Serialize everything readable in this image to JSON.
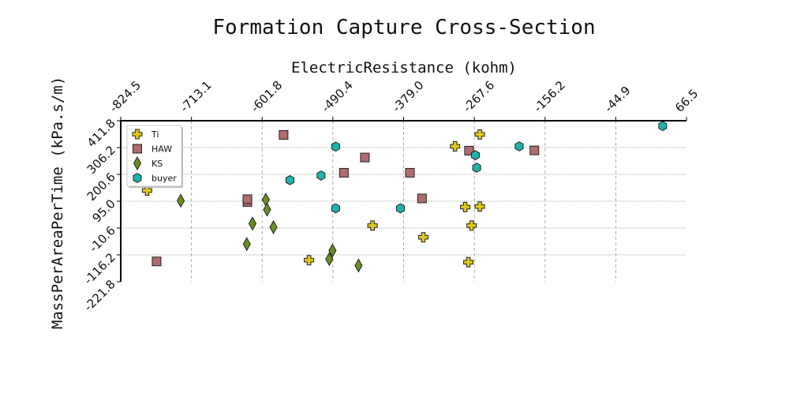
{
  "chart_data": {
    "type": "scatter",
    "title": "Formation Capture Cross-Section",
    "xlabel": "ElectricResistance (kohm)",
    "ylabel": "MassPerAreaPerTime (kPa.s/m)",
    "xlim": [
      -824.5,
      66.5
    ],
    "ylim": [
      -221.8,
      411.8
    ],
    "x_axis_position": "top",
    "xticks": [
      "-824.5",
      "-713.1",
      "-601.8",
      "-490.4",
      "-379.0",
      "-267.6",
      "-156.2",
      "-44.9",
      "66.5"
    ],
    "yticks": [
      "411.8",
      "306.2",
      "200.6",
      "95.0",
      "-10.6",
      "-116.2",
      "-221.8"
    ],
    "grid": true,
    "legend_position": "top-left",
    "series": [
      {
        "name": "Ti",
        "marker": "plus",
        "color": "#e0c81c",
        "points": [
          [
            -783,
            137
          ],
          [
            -428,
            -1
          ],
          [
            -298,
            311
          ],
          [
            -528,
            -137
          ],
          [
            -348,
            -47
          ],
          [
            -259,
            358
          ],
          [
            -282,
            72
          ],
          [
            -259,
            74
          ],
          [
            -272,
            -1
          ],
          [
            -277,
            -145
          ]
        ]
      },
      {
        "name": "HAW",
        "marker": "square",
        "color": "#b06b6e",
        "points": [
          [
            -568,
            356
          ],
          [
            -768,
            -142
          ],
          [
            -625,
            92
          ],
          [
            -625,
            103
          ],
          [
            -440,
            267
          ],
          [
            -369,
            207
          ],
          [
            -473,
            207
          ],
          [
            -276,
            294
          ],
          [
            -350,
            106
          ],
          [
            -173,
            295
          ]
        ]
      },
      {
        "name": "KS",
        "marker": "diamond",
        "color": "#6b8e23",
        "points": [
          [
            -730,
            97
          ],
          [
            -626,
            -74
          ],
          [
            -617,
            7
          ],
          [
            -596,
            101
          ],
          [
            -594,
            62
          ],
          [
            -584,
            -7
          ],
          [
            -450,
            -158
          ],
          [
            -496,
            -133
          ],
          [
            -491,
            -99
          ]
        ]
      },
      {
        "name": "buyer",
        "marker": "hexagon",
        "color": "#20b2aa",
        "points": [
          [
            -486,
            67
          ],
          [
            -486,
            310
          ],
          [
            -384,
            67
          ],
          [
            -266,
            276
          ],
          [
            -264,
            227
          ],
          [
            -558,
            178
          ],
          [
            -509,
            196
          ],
          [
            -197,
            311
          ],
          [
            29,
            391
          ]
        ]
      }
    ]
  }
}
